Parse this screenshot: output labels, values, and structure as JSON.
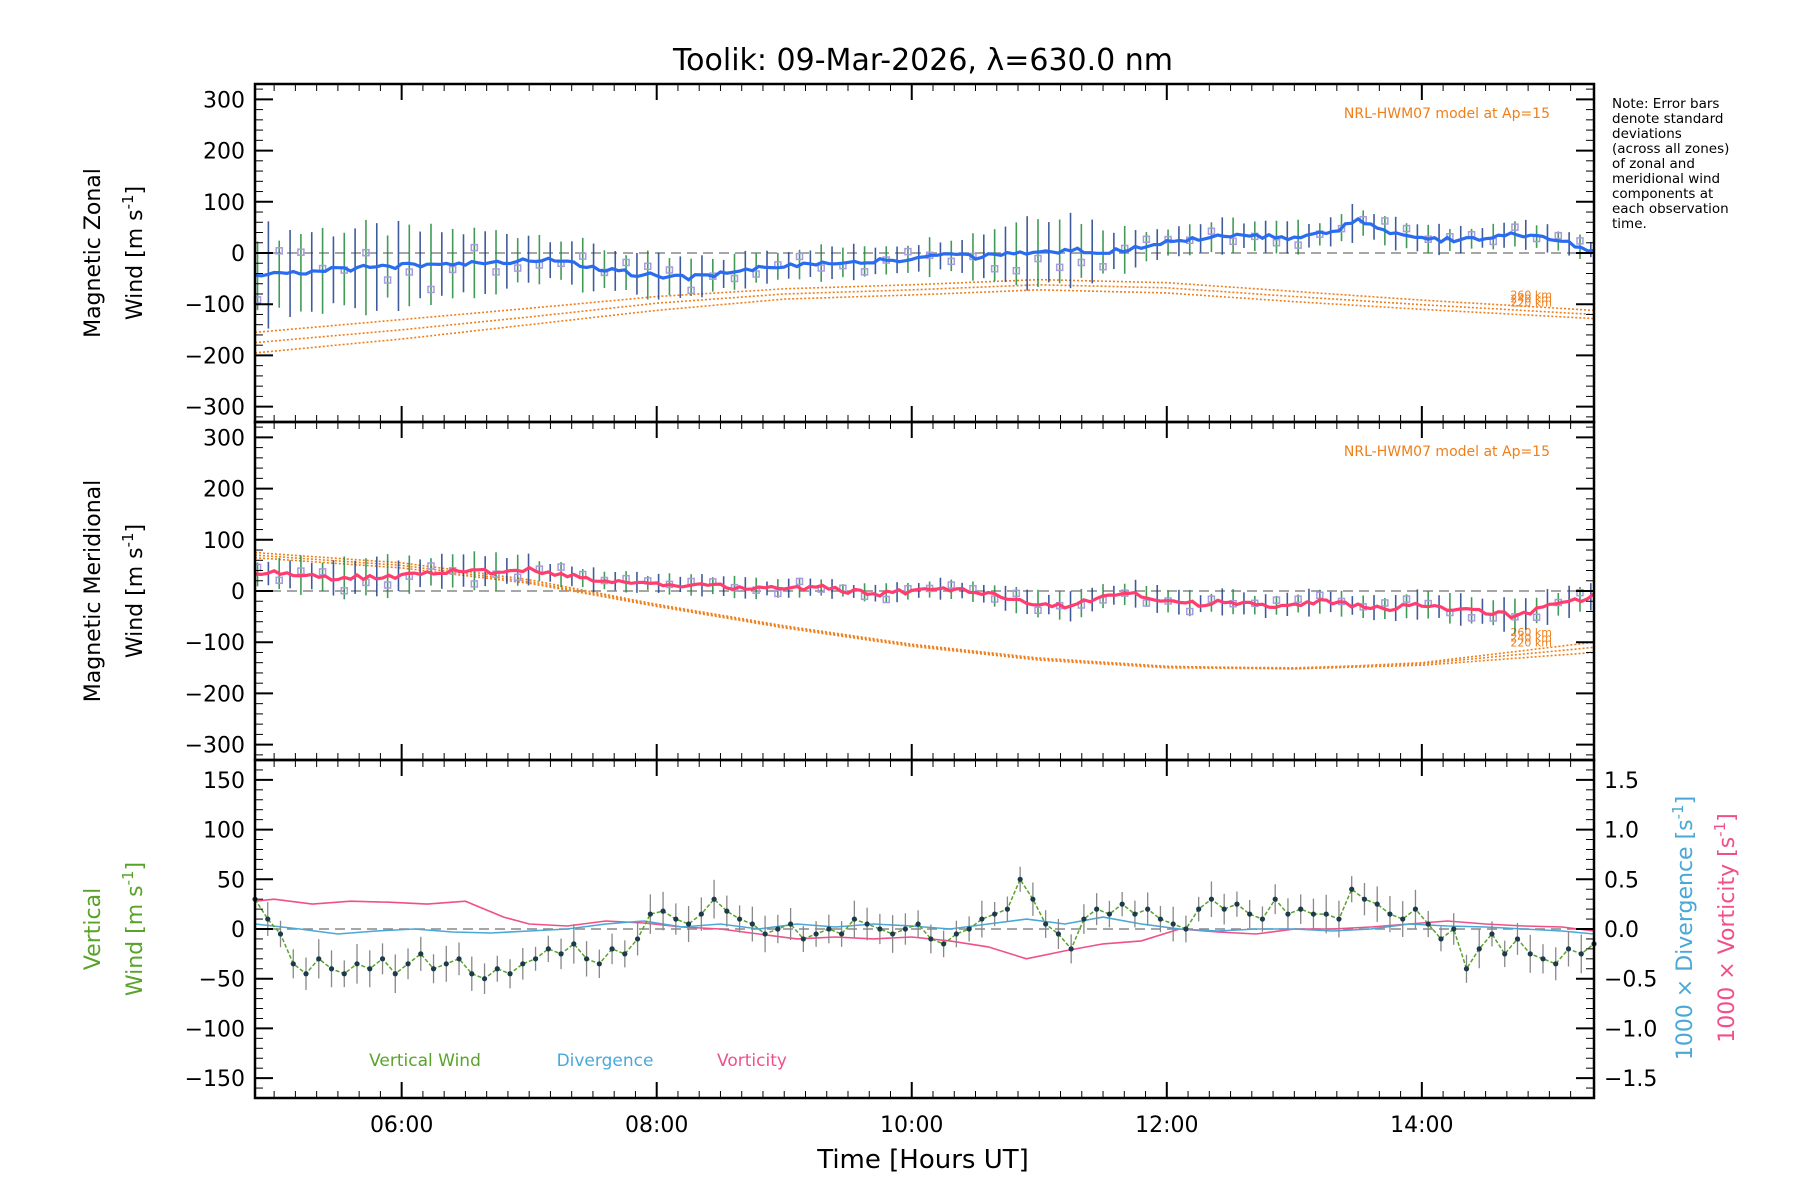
{
  "figure": {
    "title": "Toolik: 09-Mar-2026, λ=630.0 nm",
    "xlabel": "Time [Hours UT]",
    "note": [
      "Note: Error bars",
      "denote standard",
      "deviations",
      "(across all zones)",
      "of zonal and",
      "meridional wind",
      "components at",
      "each observation",
      "time."
    ]
  },
  "colors": {
    "zonal": "#2a6cf0",
    "meridional": "#ff3d6e",
    "model": "#f07f1a",
    "vertical": "#5aa32a",
    "divergence": "#4aa8d8",
    "vorticity": "#f0508a",
    "zone_points": "#a79be0",
    "error_bars_a": "#1f8a3a",
    "error_bars_b": "#1f3f8a"
  },
  "chart_data": [
    {
      "type": "line",
      "panel": "zonal",
      "ylabel_line1": "Magnetic Zonal",
      "ylabel_line2": "Wind [m s",
      "ylabel_sup": "-1",
      "ylabel_close": "]",
      "xlim": [
        4.85,
        15.35
      ],
      "ylim": [
        -330,
        330
      ],
      "y_ticks": [
        -300,
        -200,
        -100,
        0,
        100,
        200,
        300
      ],
      "y_tick_labels": [
        "−300",
        "−200",
        "−100",
        "0",
        "100",
        "200",
        "300"
      ],
      "model_label": "NRL-HWM07 model at Ap=15",
      "model_series": [
        {
          "name": "260 km",
          "x": [
            4.85,
            6.0,
            7.0,
            8.0,
            9.0,
            10.0,
            11.0,
            12.0,
            13.0,
            14.0,
            15.35
          ],
          "values": [
            -155,
            -130,
            -108,
            -85,
            -70,
            -62,
            -52,
            -58,
            -75,
            -92,
            -112
          ]
        },
        {
          "name": "240 km",
          "x": [
            4.85,
            6.0,
            7.0,
            8.0,
            9.0,
            10.0,
            11.0,
            12.0,
            13.0,
            14.0,
            15.35
          ],
          "values": [
            -175,
            -150,
            -125,
            -98,
            -80,
            -72,
            -62,
            -68,
            -85,
            -101,
            -120
          ]
        },
        {
          "name": "220 km",
          "x": [
            4.85,
            6.0,
            7.0,
            8.0,
            9.0,
            10.0,
            11.0,
            12.0,
            13.0,
            14.0,
            15.35
          ],
          "values": [
            -195,
            -168,
            -140,
            -112,
            -90,
            -82,
            -72,
            -78,
            -95,
            -110,
            -128
          ]
        }
      ],
      "mean": {
        "x": [
          4.85,
          5.0,
          5.25,
          5.5,
          5.75,
          6.0,
          6.25,
          6.5,
          6.75,
          7.0,
          7.25,
          7.5,
          7.75,
          8.0,
          8.25,
          8.5,
          8.75,
          9.0,
          9.25,
          9.5,
          9.75,
          10.0,
          10.25,
          10.5,
          10.75,
          11.0,
          11.25,
          11.5,
          11.75,
          12.0,
          12.25,
          12.5,
          12.75,
          13.0,
          13.25,
          13.5,
          13.75,
          14.0,
          14.25,
          14.5,
          14.75,
          15.0,
          15.35
        ],
        "values": [
          -45,
          -42,
          -38,
          -32,
          -28,
          -25,
          -22,
          -20,
          -18,
          -12,
          -15,
          -28,
          -38,
          -45,
          -48,
          -42,
          -30,
          -25,
          -20,
          -18,
          -15,
          -12,
          -5,
          -8,
          -2,
          0,
          5,
          2,
          8,
          20,
          28,
          35,
          32,
          30,
          38,
          62,
          40,
          28,
          25,
          30,
          38,
          28,
          5
        ]
      },
      "spread_half": [
        90,
        85,
        80,
        78,
        75,
        70,
        65,
        62,
        58,
        50,
        45,
        42,
        40,
        38,
        35,
        32,
        32,
        32,
        32,
        30,
        30,
        32,
        35,
        45,
        60,
        80,
        70,
        50,
        38,
        32,
        30,
        30,
        28,
        28,
        28,
        32,
        28,
        25,
        25,
        25,
        25,
        22,
        18
      ]
    },
    {
      "type": "line",
      "panel": "meridional",
      "ylabel_line1": "Magnetic Meridional",
      "ylabel_line2": "Wind [m s",
      "ylabel_sup": "-1",
      "ylabel_close": "]",
      "xlim": [
        4.85,
        15.35
      ],
      "ylim": [
        -330,
        330
      ],
      "y_ticks": [
        -300,
        -200,
        -100,
        0,
        100,
        200,
        300
      ],
      "y_tick_labels": [
        "−300",
        "−200",
        "−100",
        "0",
        "100",
        "200",
        "300"
      ],
      "model_label": "NRL-HWM07 model at Ap=15",
      "model_series": [
        {
          "name": "260 km",
          "x": [
            4.85,
            6.0,
            7.0,
            8.0,
            9.0,
            10.0,
            11.0,
            12.0,
            13.0,
            14.0,
            15.35
          ],
          "values": [
            65,
            45,
            15,
            -30,
            -72,
            -108,
            -135,
            -150,
            -152,
            -140,
            -100
          ]
        },
        {
          "name": "240 km",
          "x": [
            4.85,
            6.0,
            7.0,
            8.0,
            9.0,
            10.0,
            11.0,
            12.0,
            13.0,
            14.0,
            15.35
          ],
          "values": [
            70,
            50,
            18,
            -28,
            -70,
            -106,
            -133,
            -148,
            -150,
            -142,
            -110
          ]
        },
        {
          "name": "220 km",
          "x": [
            4.85,
            6.0,
            7.0,
            8.0,
            9.0,
            10.0,
            11.0,
            12.0,
            13.0,
            14.0,
            15.35
          ],
          "values": [
            75,
            55,
            22,
            -26,
            -68,
            -104,
            -131,
            -147,
            -152,
            -145,
            -120
          ]
        }
      ],
      "mean": {
        "x": [
          4.85,
          5.0,
          5.25,
          5.5,
          5.75,
          6.0,
          6.25,
          6.5,
          6.75,
          7.0,
          7.25,
          7.5,
          7.75,
          8.0,
          8.25,
          8.5,
          8.75,
          9.0,
          9.25,
          9.5,
          9.75,
          10.0,
          10.25,
          10.5,
          10.75,
          11.0,
          11.25,
          11.5,
          11.75,
          12.0,
          12.25,
          12.5,
          12.75,
          13.0,
          13.25,
          13.5,
          13.75,
          14.0,
          14.25,
          14.5,
          14.75,
          15.0,
          15.35
        ],
        "values": [
          32,
          35,
          30,
          25,
          28,
          30,
          38,
          40,
          38,
          42,
          32,
          22,
          18,
          15,
          12,
          10,
          5,
          5,
          8,
          0,
          -5,
          0,
          5,
          -2,
          -15,
          -25,
          -30,
          -10,
          -5,
          -20,
          -25,
          -20,
          -30,
          -25,
          -20,
          -30,
          -35,
          -25,
          -35,
          -40,
          -50,
          -30,
          -10
        ]
      },
      "spread_half": [
        28,
        30,
        32,
        35,
        35,
        35,
        35,
        32,
        30,
        25,
        22,
        20,
        18,
        18,
        18,
        20,
        18,
        16,
        16,
        16,
        16,
        16,
        18,
        20,
        22,
        25,
        25,
        22,
        22,
        22,
        22,
        22,
        22,
        22,
        22,
        22,
        25,
        25,
        25,
        28,
        30,
        28,
        25
      ]
    },
    {
      "type": "line",
      "panel": "vertical",
      "ylabel_line1": "Vertical",
      "ylabel_line2": "Wind [m s",
      "ylabel_sup": "-1",
      "ylabel_close": "]",
      "right_ylabel_div": "1000 × Divergence [s",
      "right_ylabel_vort": "1000 × Vorticity [s",
      "right_ylabel_sup": "-1",
      "right_ylabel_close": "]",
      "xlim": [
        4.85,
        15.35
      ],
      "ylim": [
        -170,
        170
      ],
      "y_ticks": [
        -150,
        -100,
        -50,
        0,
        50,
        100,
        150
      ],
      "y_tick_labels": [
        "−150",
        "−100",
        "−50",
        "0",
        "50",
        "100",
        "150"
      ],
      "y2lim": [
        -1.7,
        1.7
      ],
      "y2_ticks": [
        -1.5,
        -1.0,
        -0.5,
        0.0,
        0.5,
        1.0,
        1.5
      ],
      "y2_tick_labels": [
        "−1.5",
        "−1.0",
        "−0.5",
        "0.0",
        "0.5",
        "1.0",
        "1.5"
      ],
      "x_ticks": [
        6,
        8,
        10,
        12,
        14
      ],
      "x_tick_labels": [
        "06:00",
        "08:00",
        "10:00",
        "12:00",
        "14:00"
      ],
      "legend": [
        "Vertical Wind",
        "Divergence",
        "Vorticity"
      ],
      "vertical_wind": {
        "x": [
          4.85,
          4.95,
          5.05,
          5.15,
          5.25,
          5.35,
          5.45,
          5.55,
          5.65,
          5.75,
          5.85,
          5.95,
          6.05,
          6.15,
          6.25,
          6.35,
          6.45,
          6.55,
          6.65,
          6.75,
          6.85,
          6.95,
          7.05,
          7.15,
          7.25,
          7.35,
          7.45,
          7.55,
          7.65,
          7.75,
          7.85,
          7.95,
          8.05,
          8.15,
          8.25,
          8.35,
          8.45,
          8.55,
          8.65,
          8.75,
          8.85,
          8.95,
          9.05,
          9.15,
          9.25,
          9.35,
          9.45,
          9.55,
          9.65,
          9.75,
          9.85,
          9.95,
          10.05,
          10.15,
          10.25,
          10.35,
          10.45,
          10.55,
          10.65,
          10.75,
          10.85,
          10.95,
          11.05,
          11.15,
          11.25,
          11.35,
          11.45,
          11.55,
          11.65,
          11.75,
          11.85,
          11.95,
          12.05,
          12.15,
          12.25,
          12.35,
          12.45,
          12.55,
          12.65,
          12.75,
          12.85,
          12.95,
          13.05,
          13.15,
          13.25,
          13.35,
          13.45,
          13.55,
          13.65,
          13.75,
          13.85,
          13.95,
          14.05,
          14.15,
          14.25,
          14.35,
          14.45,
          14.55,
          14.65,
          14.75,
          14.85,
          14.95,
          15.05,
          15.15,
          15.25,
          15.35
        ],
        "values": [
          30,
          10,
          -5,
          -35,
          -45,
          -30,
          -40,
          -45,
          -35,
          -40,
          -30,
          -45,
          -35,
          -25,
          -40,
          -35,
          -30,
          -45,
          -50,
          -40,
          -45,
          -35,
          -30,
          -20,
          -25,
          -15,
          -30,
          -35,
          -20,
          -25,
          -10,
          15,
          18,
          10,
          5,
          15,
          30,
          18,
          10,
          5,
          -5,
          0,
          5,
          -10,
          -5,
          0,
          -5,
          10,
          5,
          0,
          -5,
          0,
          5,
          -10,
          -15,
          -5,
          0,
          10,
          15,
          20,
          50,
          30,
          5,
          -5,
          -20,
          10,
          20,
          15,
          25,
          15,
          20,
          10,
          5,
          0,
          20,
          30,
          20,
          25,
          15,
          10,
          30,
          15,
          20,
          15,
          15,
          10,
          40,
          30,
          25,
          15,
          10,
          20,
          5,
          -10,
          0,
          -40,
          -20,
          -5,
          -25,
          -10,
          -25,
          -30,
          -35,
          -20,
          -25,
          -15
        ]
      },
      "divergence": {
        "x": [
          4.85,
          5.2,
          5.5,
          5.8,
          6.1,
          6.4,
          6.7,
          7.0,
          7.3,
          7.6,
          7.9,
          8.2,
          8.5,
          8.8,
          9.1,
          9.4,
          9.7,
          10.0,
          10.3,
          10.6,
          10.9,
          11.2,
          11.5,
          11.8,
          12.1,
          12.4,
          12.7,
          13.0,
          13.3,
          13.6,
          13.9,
          14.2,
          14.5,
          14.8,
          15.1,
          15.35
        ],
        "values": [
          0.05,
          0.0,
          -0.05,
          -0.02,
          0.0,
          -0.03,
          -0.04,
          -0.02,
          0.0,
          0.05,
          0.08,
          0.02,
          0.05,
          0.0,
          0.05,
          0.02,
          0.05,
          0.03,
          0.0,
          0.05,
          0.1,
          0.05,
          0.12,
          0.05,
          0.0,
          -0.02,
          0.0,
          0.0,
          -0.02,
          0.0,
          0.05,
          0.03,
          0.02,
          0.0,
          -0.02,
          -0.05
        ]
      },
      "vorticity": {
        "x": [
          4.85,
          5.0,
          5.3,
          5.6,
          5.9,
          6.2,
          6.5,
          6.8,
          7.0,
          7.3,
          7.6,
          7.9,
          8.2,
          8.5,
          8.8,
          9.1,
          9.4,
          9.7,
          10.0,
          10.3,
          10.6,
          10.9,
          11.2,
          11.5,
          11.8,
          12.1,
          12.4,
          12.7,
          13.0,
          13.3,
          13.6,
          13.9,
          14.2,
          14.5,
          14.8,
          15.1,
          15.35
        ],
        "values": [
          0.28,
          0.3,
          0.25,
          0.28,
          0.27,
          0.25,
          0.28,
          0.12,
          0.05,
          0.03,
          0.08,
          0.06,
          0.02,
          0.0,
          -0.05,
          -0.1,
          -0.08,
          -0.1,
          -0.08,
          -0.12,
          -0.18,
          -0.3,
          -0.22,
          -0.15,
          -0.12,
          0.0,
          -0.03,
          -0.05,
          0.0,
          0.0,
          0.02,
          0.05,
          0.08,
          0.05,
          0.03,
          0.02,
          -0.02
        ]
      }
    }
  ]
}
